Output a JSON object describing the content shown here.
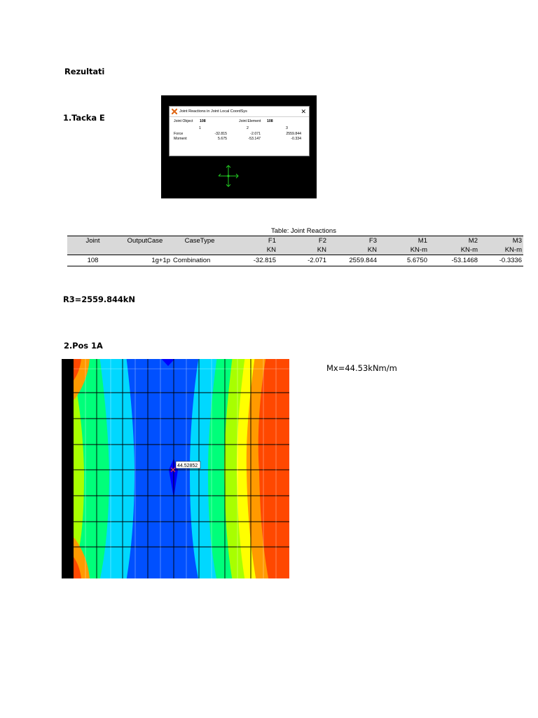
{
  "headings": {
    "rezultati": "Rezultati",
    "tacka": "1.Tacka E",
    "r3": "R3=2559.844kN",
    "pos": "2.Pos 1A"
  },
  "dialog": {
    "title": "Joint Reactions in Joint Local CoordSys",
    "close_glyph": "✕",
    "joint_object_label": "Joint Object",
    "joint_object_value": "108",
    "joint_element_label": "Joint Element",
    "joint_element_value": "108",
    "col_headers": [
      "1",
      "2",
      "3"
    ],
    "force_label": "Force",
    "force_values": [
      "-32.815",
      "-2.071",
      "2559.844"
    ],
    "moment_label": "Moment",
    "moment_values": [
      "5.675",
      "-53.147",
      "-0.334"
    ],
    "colors": {
      "background": "#000000",
      "axes": "#22cc22"
    }
  },
  "table": {
    "title": "Table:  Joint Reactions",
    "headers": [
      "Joint",
      "OutputCase",
      "CaseType",
      "F1",
      "F2",
      "F3",
      "M1",
      "M2",
      "M3"
    ],
    "units": [
      "",
      "",
      "",
      "KN",
      "KN",
      "KN",
      "KN-m",
      "KN-m",
      "KN-m"
    ],
    "row": [
      "108",
      "1g+1p",
      "Combination",
      "-32.815",
      "-2.071",
      "2559.844",
      "5.6750",
      "-53.1468",
      "-0.3336"
    ]
  },
  "contour": {
    "label": "44.52852",
    "palette": [
      "#0000ff",
      "#0050ff",
      "#00d8ff",
      "#00ff7a",
      "#a8ff00",
      "#ffff00",
      "#ff9a00",
      "#ff4800"
    ]
  },
  "mx_label": "Mx=44.53kNm/m"
}
